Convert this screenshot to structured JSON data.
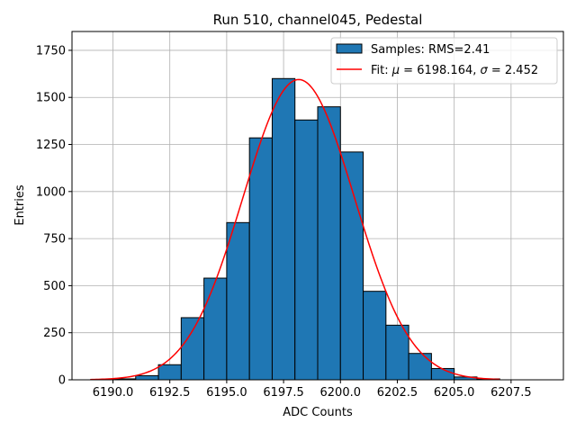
{
  "chart_data": {
    "type": "bar",
    "title": "Run 510, channel045, Pedestal",
    "xlabel": "ADC Counts",
    "ylabel": "Entries",
    "xlim": [
      6188.2,
      6209.8
    ],
    "ylim": [
      0,
      1850
    ],
    "xticks": [
      6190.0,
      6192.5,
      6195.0,
      6197.5,
      6200.0,
      6202.5,
      6205.0,
      6207.5
    ],
    "xtick_labels": [
      "6190.0",
      "6192.5",
      "6195.0",
      "6197.5",
      "6200.0",
      "6202.5",
      "6205.0",
      "6207.5"
    ],
    "yticks": [
      0,
      250,
      500,
      750,
      1000,
      1250,
      1500,
      1750
    ],
    "ytick_labels": [
      "0",
      "250",
      "500",
      "750",
      "1000",
      "1250",
      "1500",
      "1750"
    ],
    "grid": true,
    "legend_position": "top-right",
    "histogram": {
      "name": "Samples: RMS=2.41",
      "color": "#1f77b4",
      "edge_color": "#000000",
      "bin_edges": [
        6189,
        6190,
        6191,
        6192,
        6193,
        6194,
        6195,
        6196,
        6197,
        6198,
        6199,
        6200,
        6201,
        6202,
        6203,
        6204,
        6205,
        6206,
        6207,
        6208,
        6209
      ],
      "counts": [
        0,
        5,
        22,
        80,
        330,
        540,
        835,
        1285,
        1600,
        1380,
        1450,
        1210,
        470,
        290,
        140,
        60,
        15,
        5,
        0,
        0
      ]
    },
    "fit": {
      "name": "Fit: μ = 6198.164, σ = 2.452",
      "name_parts": {
        "prefix": "Fit: ",
        "mu_symbol": "μ",
        "mu_text": " = 6198.164, ",
        "sigma_symbol": "σ",
        "sigma_text": " = 2.452"
      },
      "color": "#ff0000",
      "mu": 6198.164,
      "sigma": 2.452,
      "amplitude": 1595,
      "x_range": [
        6189,
        6207
      ]
    }
  }
}
